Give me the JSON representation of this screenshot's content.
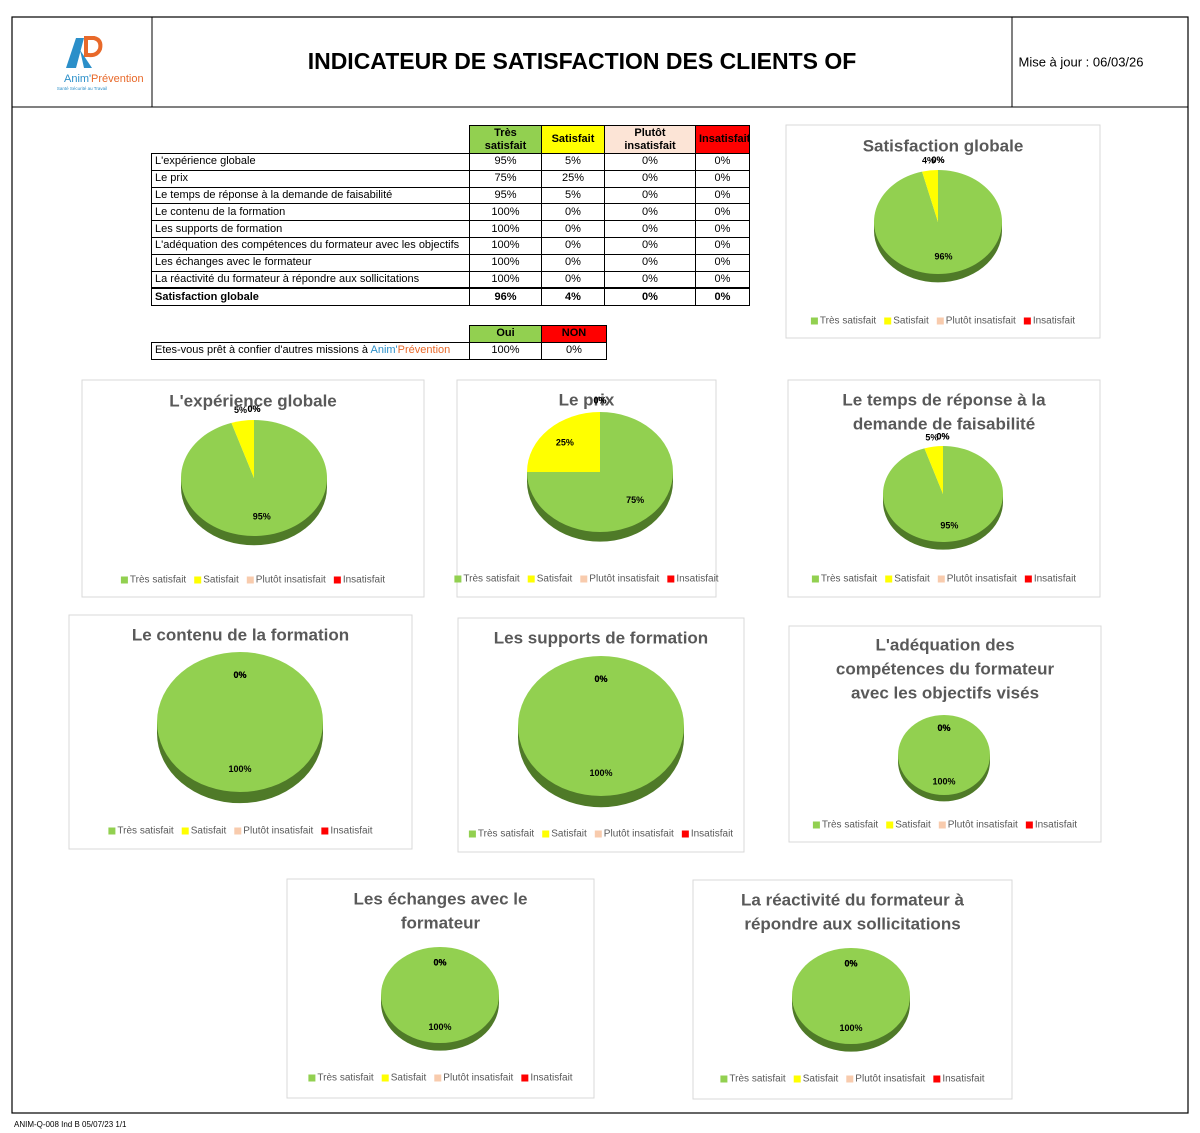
{
  "header": {
    "title": "INDICATEUR DE SATISFACTION DES CLIENTS OF",
    "update": "Mise à jour : 06/03/26",
    "logo": {
      "brand_1": "Anim'",
      "brand_2": "Prévention",
      "tagline": "Santé Sécurité au Travail"
    }
  },
  "table": {
    "columns": [
      "Très satisfait",
      "Satisfait",
      "Plutôt insatisfait",
      "Insatisfait"
    ],
    "rows": [
      [
        "L'expérience globale",
        "95%",
        "5%",
        "0%",
        "0%"
      ],
      [
        "Le prix",
        "75%",
        "25%",
        "0%",
        "0%"
      ],
      [
        "Le temps de réponse à la demande de faisabilité",
        "95%",
        "5%",
        "0%",
        "0%"
      ],
      [
        "Le contenu de la formation",
        "100%",
        "0%",
        "0%",
        "0%"
      ],
      [
        "Les supports de formation",
        "100%",
        "0%",
        "0%",
        "0%"
      ],
      [
        "L'adéquation des compétences du formateur avec les objectifs",
        "100%",
        "0%",
        "0%",
        "0%"
      ],
      [
        "Les échanges avec le formateur",
        "100%",
        "0%",
        "0%",
        "0%"
      ],
      [
        "La réactivité du formateur à répondre aux sollicitations",
        "100%",
        "0%",
        "0%",
        "0%"
      ],
      [
        "Satisfaction globale",
        "96%",
        "4%",
        "0%",
        "0%"
      ]
    ]
  },
  "question": {
    "columns": [
      "Oui",
      "NON"
    ],
    "label": "Etes-vous prêt à confier d'autres missions à ",
    "brand_1": "Anim'",
    "brand_2": "Prévention",
    "values": [
      "100%",
      "0%"
    ]
  },
  "legend": {
    "names": [
      "Très satisfait",
      "Satisfait",
      "Plutôt insatisfait",
      "Insatisfait"
    ],
    "colors": [
      "#92d050",
      "#ffff00",
      "#f8cbad",
      "#ff0000"
    ]
  },
  "charts": [
    {
      "type": "pie",
      "title": [
        "Satisfaction globale"
      ],
      "values": [
        96,
        4,
        0,
        0
      ],
      "value_labels": [
        "96%",
        "4%",
        "0%",
        "0%"
      ]
    },
    {
      "type": "pie",
      "title": [
        "L'expérience globale"
      ],
      "values": [
        95,
        5,
        0,
        0
      ],
      "value_labels": [
        "95%",
        "5%",
        "0%",
        "0%"
      ]
    },
    {
      "type": "pie",
      "title": [
        "Le prix"
      ],
      "values": [
        75,
        25,
        0,
        0
      ],
      "value_labels": [
        "75%",
        "25%",
        "0%",
        "0%"
      ]
    },
    {
      "type": "pie",
      "title": [
        "Le temps de réponse à la",
        "demande de faisabilité"
      ],
      "values": [
        95,
        5,
        0,
        0
      ],
      "value_labels": [
        "95%",
        "5%",
        "0%",
        "0%"
      ]
    },
    {
      "type": "pie",
      "title": [
        "Le contenu de la formation"
      ],
      "values": [
        100,
        0,
        0,
        0
      ],
      "value_labels": [
        "100%",
        "0%",
        "0%",
        "0%"
      ]
    },
    {
      "type": "pie",
      "title": [
        "Les supports de formation"
      ],
      "values": [
        100,
        0,
        0,
        0
      ],
      "value_labels": [
        "100%",
        "0%",
        "0%",
        "0%"
      ]
    },
    {
      "type": "pie",
      "title": [
        "L'adéquation des",
        "compétences du formateur",
        "avec les objectifs visés"
      ],
      "values": [
        100,
        0,
        0,
        0
      ],
      "value_labels": [
        "100%",
        "0%",
        "0%",
        "0%"
      ]
    },
    {
      "type": "pie",
      "title": [
        "Les échanges avec le",
        "formateur"
      ],
      "values": [
        100,
        0,
        0,
        0
      ],
      "value_labels": [
        "100%",
        "0%",
        "0%",
        "0%"
      ]
    },
    {
      "type": "pie",
      "title": [
        "La réactivité du formateur à",
        "répondre aux sollicitations"
      ],
      "values": [
        100,
        0,
        0,
        0
      ],
      "value_labels": [
        "100%",
        "0%",
        "0%",
        "0%"
      ]
    }
  ],
  "footer": "ANIM-Q-008 Ind B 05/07/23 1/1"
}
